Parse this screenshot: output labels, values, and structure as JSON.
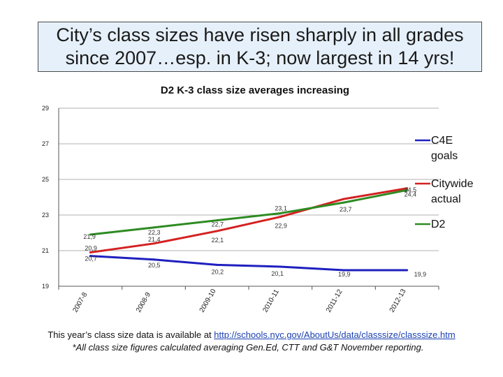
{
  "slide": {
    "title": "City’s class sizes have risen sharply in all grades since 2007…esp. in K-3; now largest in 14 yrs!",
    "footer_text": "This year’s class size data is available at ",
    "footer_link": "http://schools.nyc.gov/AboutUs/data/classsize/classsize.htm",
    "footnote": "*All class size figures calculated averaging Gen.Ed, CTT and G&T November reporting."
  },
  "chart_data": {
    "type": "line",
    "title": "D2 K-3 class size averages increasing",
    "categories": [
      "2007-8",
      "2008-9",
      "2009-10",
      "2010-11",
      "2011-12",
      "2012-13"
    ],
    "ylim": [
      19,
      29
    ],
    "yticks": [
      19,
      21,
      23,
      25,
      27,
      29
    ],
    "grid": true,
    "legend_position": "right",
    "series": [
      {
        "name": "C4E goals",
        "color": "#1f1fbf",
        "values": [
          20.7,
          20.5,
          20.2,
          20.1,
          19.9,
          19.9
        ],
        "labels": [
          "20,7",
          "20,5",
          "20,2",
          "20,1",
          "19,9",
          "19,9"
        ]
      },
      {
        "name": "Citywide actual",
        "color": "#d42020",
        "values": [
          20.9,
          21.4,
          22.1,
          22.9,
          23.9,
          24.5
        ],
        "labels": [
          "20,9",
          "21,4",
          "22,1",
          "22,9",
          "",
          "24,5"
        ]
      },
      {
        "name": "D2",
        "color": "#2e8b22",
        "values": [
          21.9,
          22.3,
          22.7,
          23.1,
          23.7,
          24.4
        ],
        "labels": [
          "21,9",
          "22,3",
          "22,7",
          "23,1",
          "23,7",
          "24,4"
        ]
      }
    ]
  }
}
